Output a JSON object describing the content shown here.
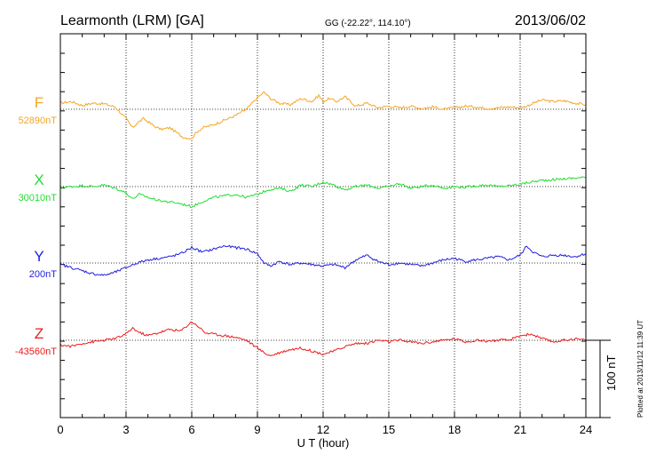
{
  "chart_data": {
    "type": "line",
    "title": "Learmonth (LRM)  [GA]",
    "coordinates": "GG (-22.22°, 114.10°)",
    "date": "2013/06/02",
    "xlabel": "U T (hour)",
    "xlim": [
      0,
      24
    ],
    "xticks": [
      "0",
      "3",
      "6",
      "9",
      "12",
      "15",
      "18",
      "21",
      "24"
    ],
    "grid": true,
    "scale_bar": {
      "value": 100,
      "label": "100 nT"
    },
    "footnote": "Plotted at 2013/11/12 11:39 UT",
    "series": [
      {
        "name": "F",
        "baseline_label": "52890nT",
        "baseline": 52890,
        "color": "#f5a623",
        "x": [
          0,
          0.5,
          1,
          1.5,
          2,
          2.5,
          3,
          3.3,
          3.5,
          3.8,
          4,
          4.3,
          4.6,
          5,
          5.3,
          5.6,
          6,
          6.2,
          6.5,
          7,
          7.5,
          8,
          8.5,
          9,
          9.3,
          9.6,
          10,
          10.5,
          11,
          11.5,
          11.8,
          12,
          12.3,
          12.6,
          13,
          13.5,
          14,
          14.5,
          15,
          15.5,
          16,
          16.5,
          17,
          17.5,
          18,
          18.5,
          19,
          19.5,
          20,
          20.5,
          21,
          21.3,
          21.6,
          22,
          22.5,
          23,
          23.5,
          24
        ],
        "y": [
          8,
          10,
          5,
          8,
          7,
          3,
          -12,
          -24,
          -18,
          -12,
          -16,
          -22,
          -26,
          -24,
          -30,
          -36,
          -38,
          -30,
          -24,
          -20,
          -14,
          -8,
          0,
          15,
          22,
          14,
          8,
          6,
          14,
          10,
          18,
          10,
          14,
          10,
          16,
          4,
          8,
          2,
          4,
          2,
          4,
          1,
          3,
          0,
          2,
          4,
          3,
          1,
          2,
          3,
          2,
          4,
          8,
          12,
          10,
          11,
          8,
          6
        ]
      },
      {
        "name": "X",
        "baseline_label": "30010nT",
        "baseline": 30010,
        "color": "#22dd33",
        "x": [
          0,
          0.5,
          1,
          1.5,
          2,
          2.5,
          3,
          3.3,
          3.6,
          4,
          4.5,
          5,
          5.5,
          6,
          6.3,
          6.6,
          7,
          7.5,
          8,
          8.5,
          9,
          9.5,
          10,
          10.5,
          11,
          11.5,
          12,
          12.5,
          13,
          13.5,
          14,
          14.5,
          15,
          15.5,
          16,
          16.5,
          17,
          17.5,
          18,
          18.5,
          19,
          19.5,
          20,
          20.5,
          21,
          21.5,
          22,
          22.5,
          23,
          23.5,
          24
        ],
        "y": [
          -2,
          0,
          1,
          0,
          2,
          -2,
          -8,
          -16,
          -10,
          -14,
          -18,
          -20,
          -22,
          -26,
          -22,
          -18,
          -14,
          -12,
          -10,
          -14,
          -10,
          -4,
          -2,
          -6,
          2,
          0,
          6,
          2,
          -4,
          0,
          2,
          -2,
          0,
          4,
          -2,
          0,
          2,
          -2,
          0,
          -1,
          1,
          2,
          0,
          1,
          3,
          6,
          8,
          9,
          10,
          11,
          12
        ]
      },
      {
        "name": "Y",
        "baseline_label": "200nT",
        "baseline": 200,
        "color": "#1f1fdd",
        "x": [
          0,
          0.5,
          1,
          1.5,
          2,
          2.5,
          3,
          3.5,
          4,
          4.5,
          5,
          5.5,
          6,
          6.5,
          7,
          7.5,
          8,
          8.5,
          9,
          9.3,
          9.6,
          10,
          10.5,
          11,
          11.5,
          12,
          12.5,
          13,
          13.5,
          14,
          14.5,
          15,
          15.5,
          16,
          16.5,
          17,
          17.5,
          18,
          18.5,
          19,
          19.5,
          20,
          20.5,
          21,
          21.3,
          21.6,
          22,
          22.5,
          23,
          23.5,
          24
        ],
        "y": [
          -2,
          -6,
          -10,
          -14,
          -16,
          -12,
          -6,
          0,
          4,
          6,
          8,
          12,
          20,
          14,
          18,
          22,
          20,
          18,
          12,
          0,
          -4,
          2,
          -2,
          0,
          -2,
          -4,
          -2,
          -6,
          4,
          10,
          2,
          -2,
          0,
          -2,
          -4,
          0,
          4,
          6,
          2,
          4,
          6,
          8,
          4,
          10,
          22,
          14,
          8,
          10,
          10,
          8,
          12
        ]
      },
      {
        "name": "Z",
        "baseline_label": "-43560nT",
        "baseline": -43560,
        "color": "#ee1a1a",
        "x": [
          0,
          0.5,
          1,
          1.5,
          2,
          2.5,
          3,
          3.3,
          3.6,
          4,
          4.5,
          5,
          5.5,
          6,
          6.3,
          6.6,
          7,
          7.5,
          8,
          8.5,
          9,
          9.3,
          9.6,
          10,
          10.5,
          11,
          11.5,
          12,
          12.5,
          13,
          13.5,
          14,
          14.5,
          15,
          15.5,
          16,
          16.5,
          17,
          17.5,
          18,
          18.5,
          19,
          19.5,
          20,
          20.5,
          21,
          21.5,
          22,
          22.5,
          23,
          23.5,
          24
        ],
        "y": [
          -6,
          -8,
          -4,
          -2,
          0,
          2,
          8,
          16,
          10,
          6,
          10,
          14,
          12,
          24,
          18,
          10,
          8,
          6,
          4,
          0,
          -10,
          -16,
          -20,
          -16,
          -12,
          -10,
          -14,
          -18,
          -14,
          -8,
          -4,
          -4,
          0,
          -2,
          0,
          -2,
          -4,
          -2,
          0,
          2,
          -2,
          0,
          -1,
          0,
          0,
          6,
          8,
          2,
          -2,
          0,
          2,
          0
        ]
      }
    ]
  }
}
